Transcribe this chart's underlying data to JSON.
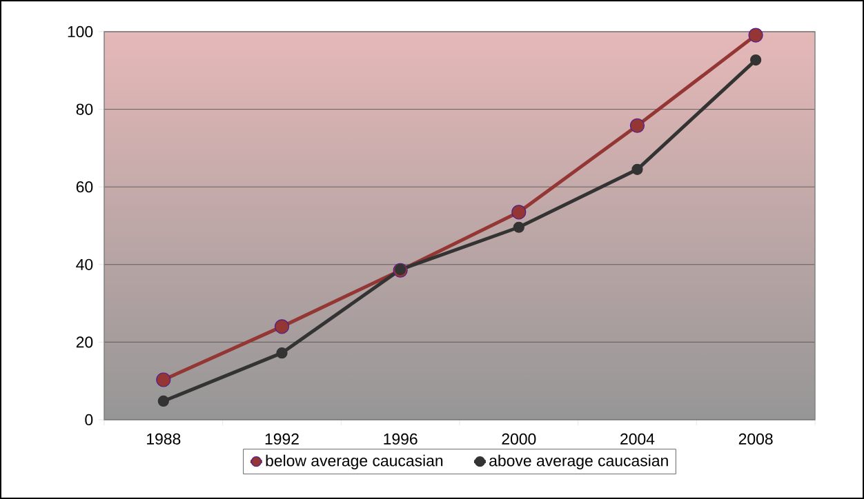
{
  "chart_data": {
    "type": "line",
    "categories": [
      "1988",
      "1992",
      "1996",
      "2000",
      "2004",
      "2008"
    ],
    "series": [
      {
        "name": "below average caucasian",
        "color": "#943634",
        "values": [
          10.3,
          24,
          38.5,
          53.5,
          75.8,
          99.1
        ]
      },
      {
        "name": "above average caucasian",
        "color": "#333333",
        "values": [
          4.8,
          17.2,
          38.7,
          49.6,
          64.5,
          92.7
        ]
      }
    ],
    "ylim": [
      0,
      100
    ],
    "yticks": [
      0,
      20,
      40,
      60,
      80,
      100
    ],
    "grid": "y",
    "legend": "bottom",
    "marker": "circle",
    "line_style": "solid"
  }
}
